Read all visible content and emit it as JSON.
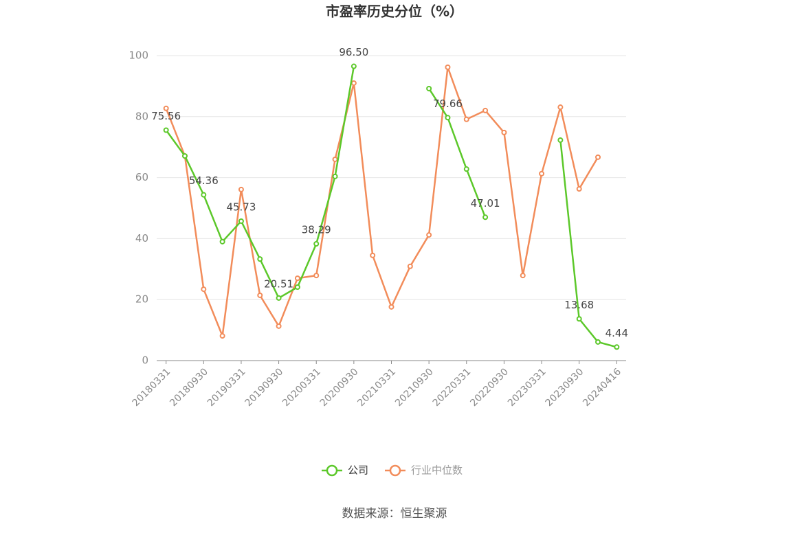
{
  "chart_data": {
    "type": "line",
    "title": "市盈率历史分位（%）",
    "categories": [
      "20180331",
      null,
      "20180930",
      null,
      "20190331",
      null,
      "20190930",
      null,
      "20200331",
      null,
      "20200930",
      null,
      "20210331",
      null,
      "20210930",
      null,
      "20220331",
      null,
      "20220930",
      null,
      "20230331",
      null,
      "20230930",
      null,
      "20240416"
    ],
    "series": [
      {
        "name": "公司",
        "color": "#5cc82a",
        "values": [
          75.56,
          67.1,
          54.36,
          39.0,
          45.73,
          33.3,
          20.51,
          24.1,
          38.29,
          60.4,
          96.5,
          null,
          null,
          null,
          89.2,
          79.66,
          62.8,
          47.01,
          null,
          null,
          null,
          72.3,
          13.68,
          6.1,
          4.44
        ],
        "value_labels": [
          "75.56",
          null,
          "54.36",
          null,
          "45.73",
          null,
          "20.51",
          null,
          "38.29",
          null,
          "96.50",
          null,
          null,
          null,
          null,
          "79.66",
          null,
          "47.01",
          null,
          null,
          null,
          null,
          "13.68",
          null,
          "4.44"
        ]
      },
      {
        "name": "行业中位数",
        "color": "#f28c5a",
        "values": [
          82.7,
          67.1,
          23.4,
          8.1,
          56.1,
          21.4,
          11.3,
          27.0,
          27.9,
          66.0,
          91.0,
          34.5,
          17.6,
          30.9,
          41.2,
          96.2,
          79.1,
          82.0,
          74.8,
          27.9,
          61.3,
          83.1,
          56.3,
          66.7,
          null
        ]
      }
    ],
    "ylim": [
      0,
      100
    ],
    "yticks": [
      0,
      20,
      40,
      60,
      80,
      100
    ],
    "grid": true,
    "legend": "bottom",
    "source": "数据来源：恒生聚源"
  }
}
